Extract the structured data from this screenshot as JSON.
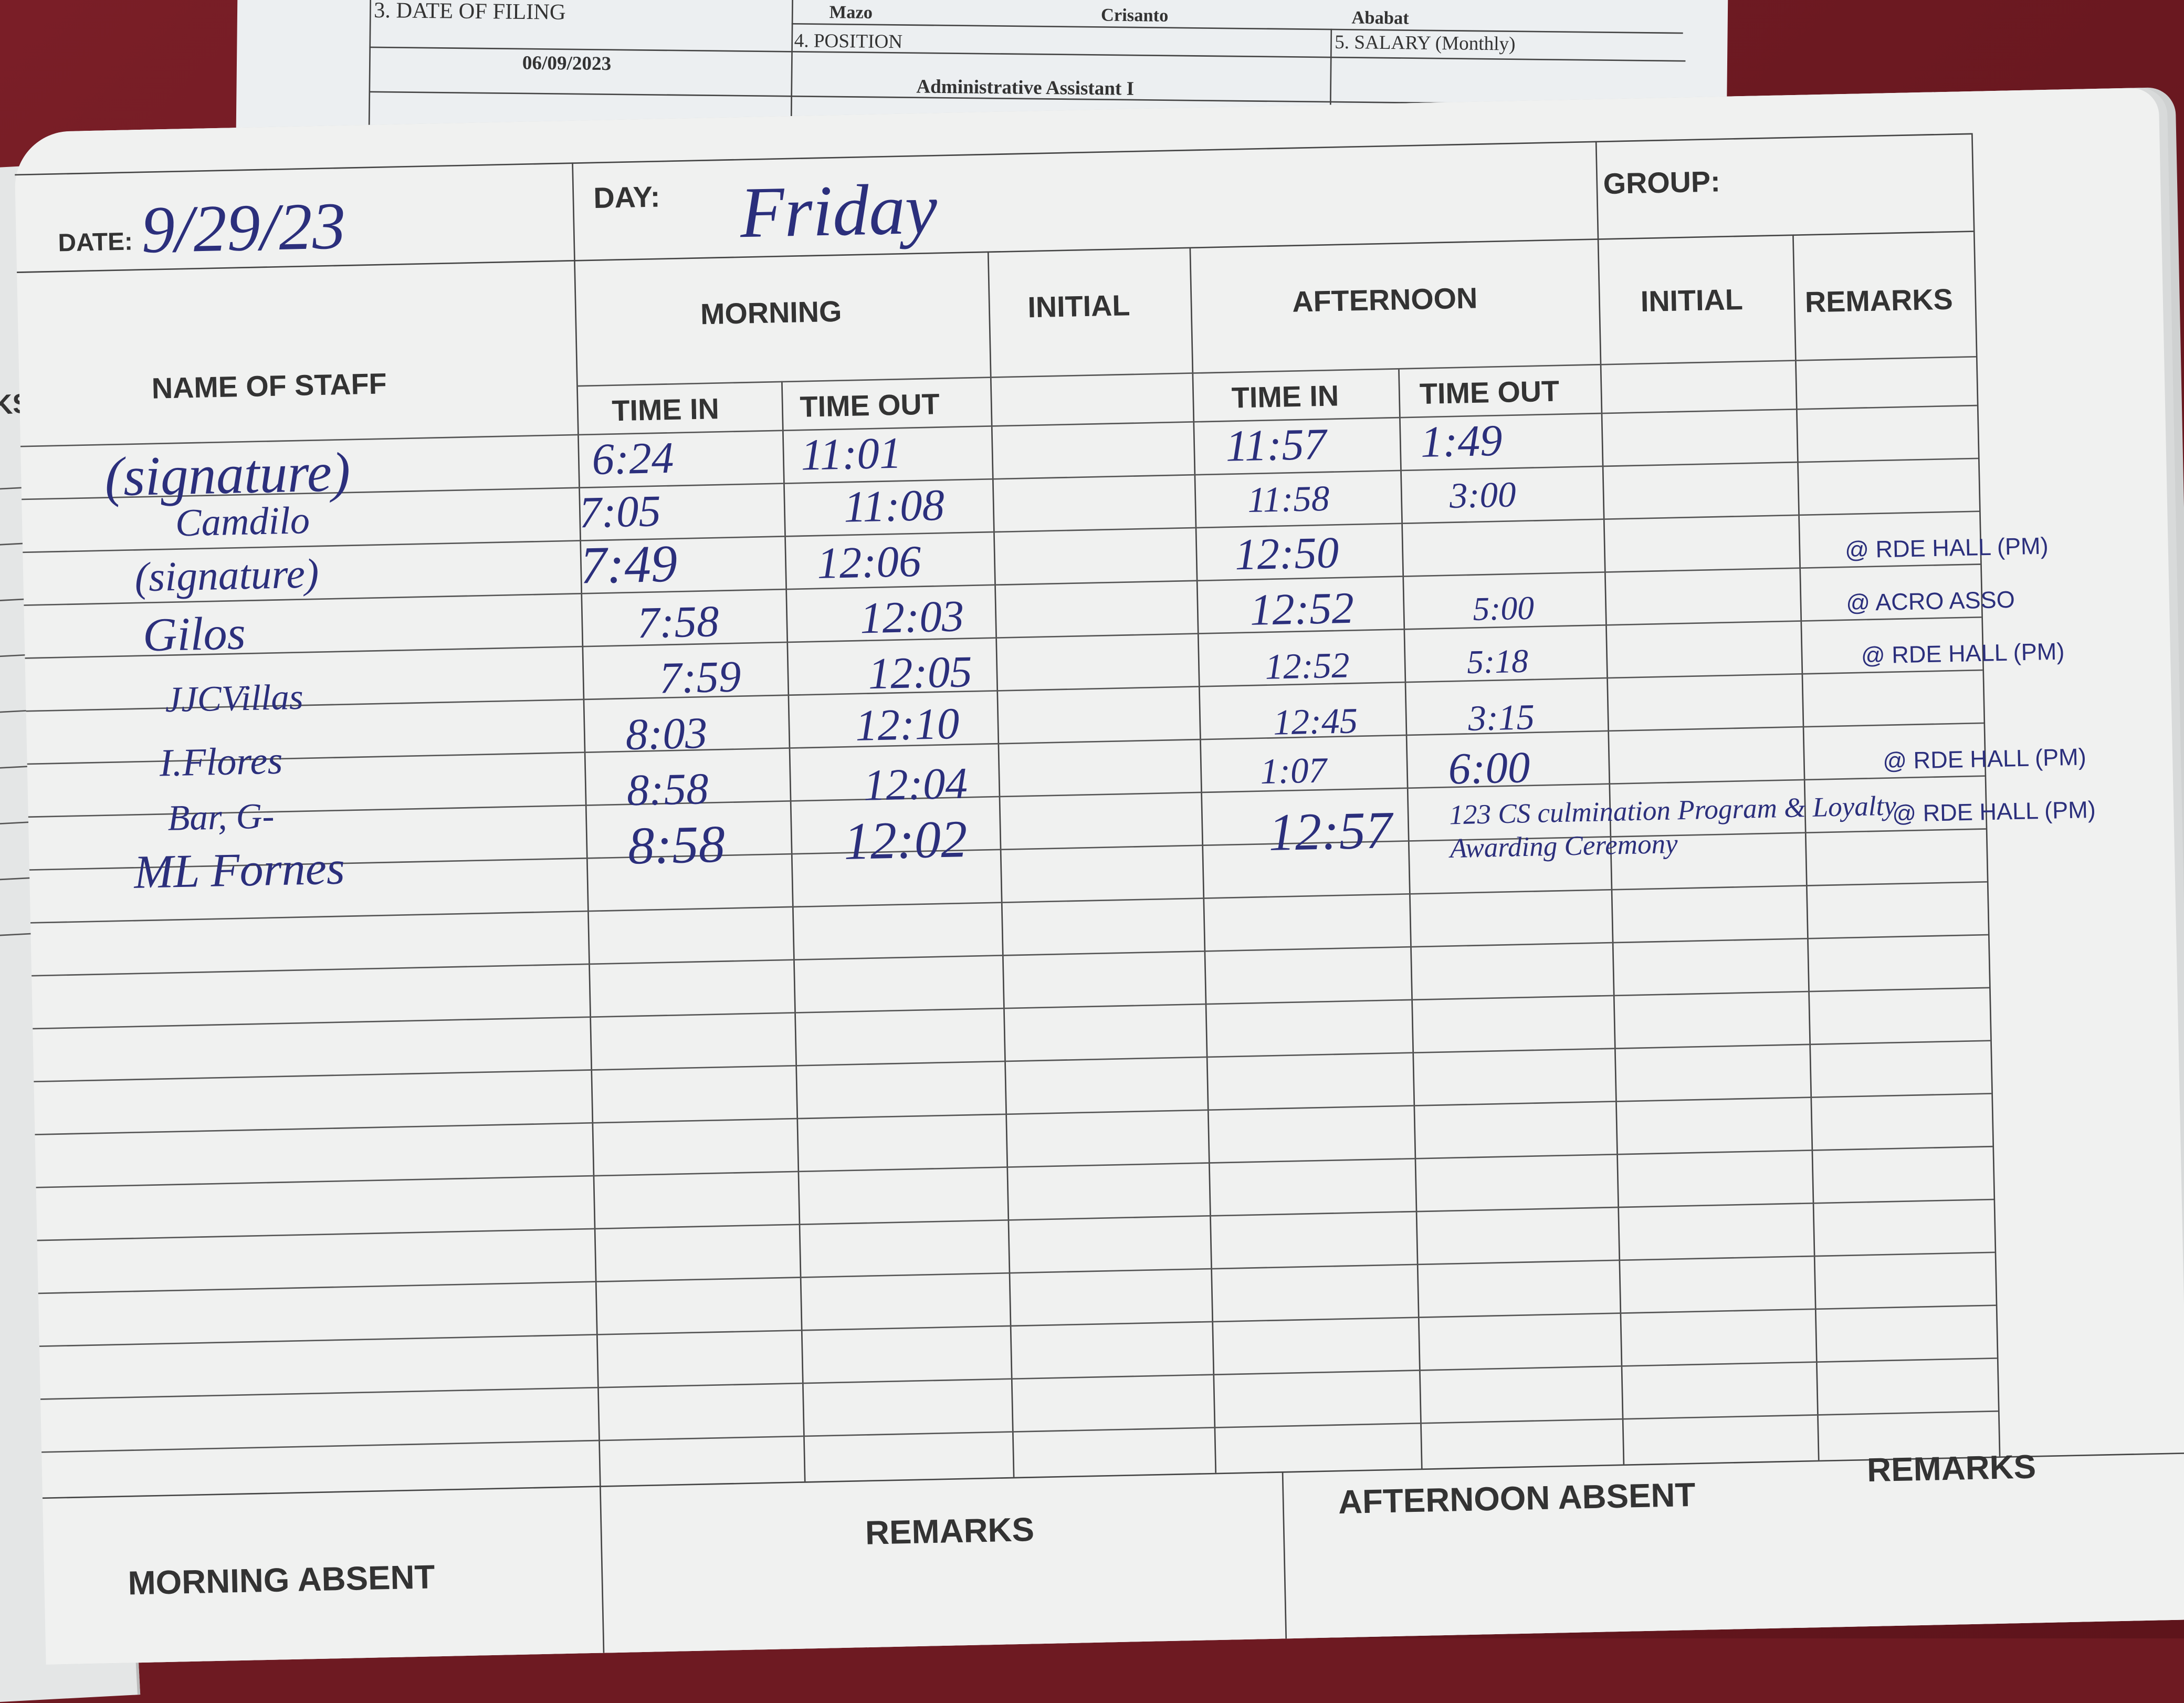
{
  "top_form": {
    "names": [
      "Mazo",
      "Crisanto",
      "Ababat"
    ],
    "date_of_filing_label": "3. DATE OF FILING",
    "date_of_filing": "06/09/2023",
    "position_label": "4. POSITION",
    "position": "Administrative Assistant I",
    "salary_label": "5. SALARY (Monthly)"
  },
  "left_page": {
    "label": "RKS"
  },
  "logbook": {
    "date_label": "DATE:",
    "date": "9/29/23",
    "day_label": "DAY:",
    "day": "Friday",
    "group_label": "GROUP:",
    "headers": {
      "name": "NAME OF STAFF",
      "morning": "MORNING",
      "initial_am": "INITIAL",
      "afternoon": "AFTERNOON",
      "initial_pm": "INITIAL",
      "remarks": "REMARKS",
      "am_in": "TIME IN",
      "am_out": "TIME OUT",
      "pm_in": "TIME IN",
      "pm_out": "TIME OUT"
    },
    "rows": [
      {
        "name": "(signature)",
        "am_in": "6:24",
        "am_out": "11:01",
        "pm_in": "11:57",
        "pm_out": "1:49",
        "remarks": ""
      },
      {
        "name": "Camdilo",
        "am_in": "7:05",
        "am_out": "11:08",
        "pm_in": "11:58",
        "pm_out": "3:00",
        "remarks": ""
      },
      {
        "name": "(signature)",
        "am_in": "7:49",
        "am_out": "12:06",
        "pm_in": "12:50",
        "pm_out": "",
        "remarks": "@ RDE HALL (PM)"
      },
      {
        "name": "Gilos",
        "am_in": "7:58",
        "am_out": "12:03",
        "pm_in": "12:52",
        "pm_out": "5:00",
        "remarks": "@ ACRO ASSO"
      },
      {
        "name": "JJCVillas",
        "am_in": "7:59",
        "am_out": "12:05",
        "pm_in": "12:52",
        "pm_out": "5:18",
        "remarks": "@ RDE HALL (PM)"
      },
      {
        "name": "I.Flores",
        "am_in": "8:03",
        "am_out": "12:10",
        "pm_in": "12:45",
        "pm_out": "3:15",
        "remarks": ""
      },
      {
        "name": "Bar, G-",
        "am_in": "8:58",
        "am_out": "12:04",
        "pm_in": "1:07",
        "pm_out": "6:00",
        "remarks": "@ RDE HALL (PM)"
      },
      {
        "name": "ML Fornes",
        "am_in": "8:58",
        "am_out": "12:02",
        "pm_in": "12:57",
        "pm_out": "123 CS culmination Program & Loyalty Awarding Ceremony",
        "remarks": "@ RDE HALL (PM)"
      }
    ],
    "footer": {
      "morning_absent": "MORNING ABSENT",
      "remarks_am": "REMARKS",
      "afternoon_absent": "AFTERNOON ABSENT",
      "remarks_pm": "REMARKS"
    }
  },
  "colors": {
    "ink": "#2b2f7c",
    "background": "#6e1a22",
    "paper": "#f0f1f0"
  }
}
